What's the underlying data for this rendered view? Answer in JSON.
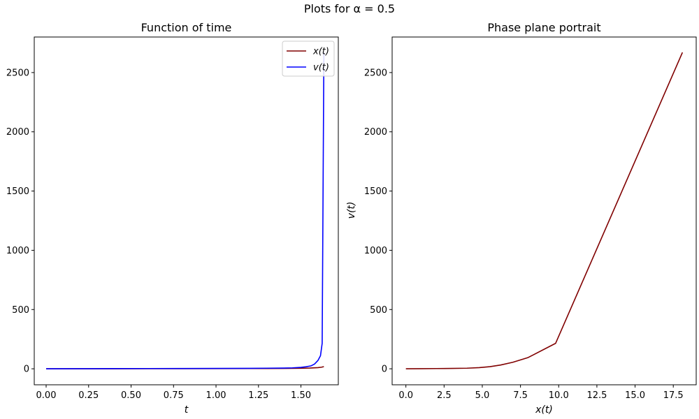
{
  "figure": {
    "suptitle": "Plots for α = 0.5"
  },
  "colors": {
    "x_series": "#800000",
    "v_series": "#0000ff"
  },
  "chart_data": [
    {
      "type": "line",
      "title": "Function of time",
      "xlabel": "t",
      "ylabel": "",
      "xlim": [
        -0.07,
        1.72
      ],
      "ylim": [
        -135,
        2800
      ],
      "xticks": [
        0.0,
        0.25,
        0.5,
        0.75,
        1.0,
        1.25,
        1.5
      ],
      "xtick_labels": [
        "0.00",
        "0.25",
        "0.50",
        "0.75",
        "1.00",
        "1.25",
        "1.50"
      ],
      "yticks": [
        0,
        500,
        1000,
        1500,
        2000,
        2500
      ],
      "ytick_labels": [
        "0",
        "500",
        "1000",
        "1500",
        "2000",
        "2500"
      ],
      "legend_position": "top-right",
      "grid": false,
      "series": [
        {
          "name": "x(t)",
          "color": "#800000",
          "x": [
            0.0,
            0.2,
            0.4,
            0.6,
            0.8,
            1.0,
            1.2,
            1.4,
            1.5,
            1.55,
            1.6,
            1.62,
            1.635
          ],
          "y": [
            0,
            0.2,
            0.4,
            0.7,
            1.0,
            1.4,
            2.0,
            3.0,
            4.5,
            6.0,
            9.8,
            13.0,
            18.1
          ]
        },
        {
          "name": "v(t)",
          "color": "#0000ff",
          "x": [
            0.0,
            0.2,
            0.4,
            0.6,
            0.8,
            1.0,
            1.2,
            1.4,
            1.45,
            1.5,
            1.53,
            1.56,
            1.58,
            1.6,
            1.615,
            1.625,
            1.635
          ],
          "y": [
            0,
            1,
            1.5,
            2,
            2.5,
            3,
            4,
            6,
            8,
            12,
            17,
            25,
            40,
            70,
            110,
            215,
            2670
          ]
        }
      ]
    },
    {
      "type": "line",
      "title": "Phase plane portrait",
      "xlabel": "x(t)",
      "ylabel": "v(t)",
      "xlim": [
        -0.9,
        19.0
      ],
      "ylim": [
        -135,
        2800
      ],
      "xticks": [
        0.0,
        2.5,
        5.0,
        7.5,
        10.0,
        12.5,
        15.0,
        17.5
      ],
      "xtick_labels": [
        "0.0",
        "2.5",
        "5.0",
        "7.5",
        "10.0",
        "12.5",
        "15.0",
        "17.5"
      ],
      "yticks": [
        0,
        500,
        1000,
        1500,
        2000,
        2500
      ],
      "ytick_labels": [
        "0",
        "500",
        "1000",
        "1500",
        "2000",
        "2500"
      ],
      "grid": false,
      "series": [
        {
          "color": "#800000",
          "x": [
            0.0,
            1.0,
            2.0,
            3.0,
            4.0,
            4.8,
            5.5,
            6.2,
            7.0,
            8.0,
            9.8,
            18.1
          ],
          "y": [
            0,
            1,
            2,
            3,
            5,
            10,
            18,
            32,
            55,
            95,
            215,
            2670
          ]
        }
      ]
    }
  ]
}
